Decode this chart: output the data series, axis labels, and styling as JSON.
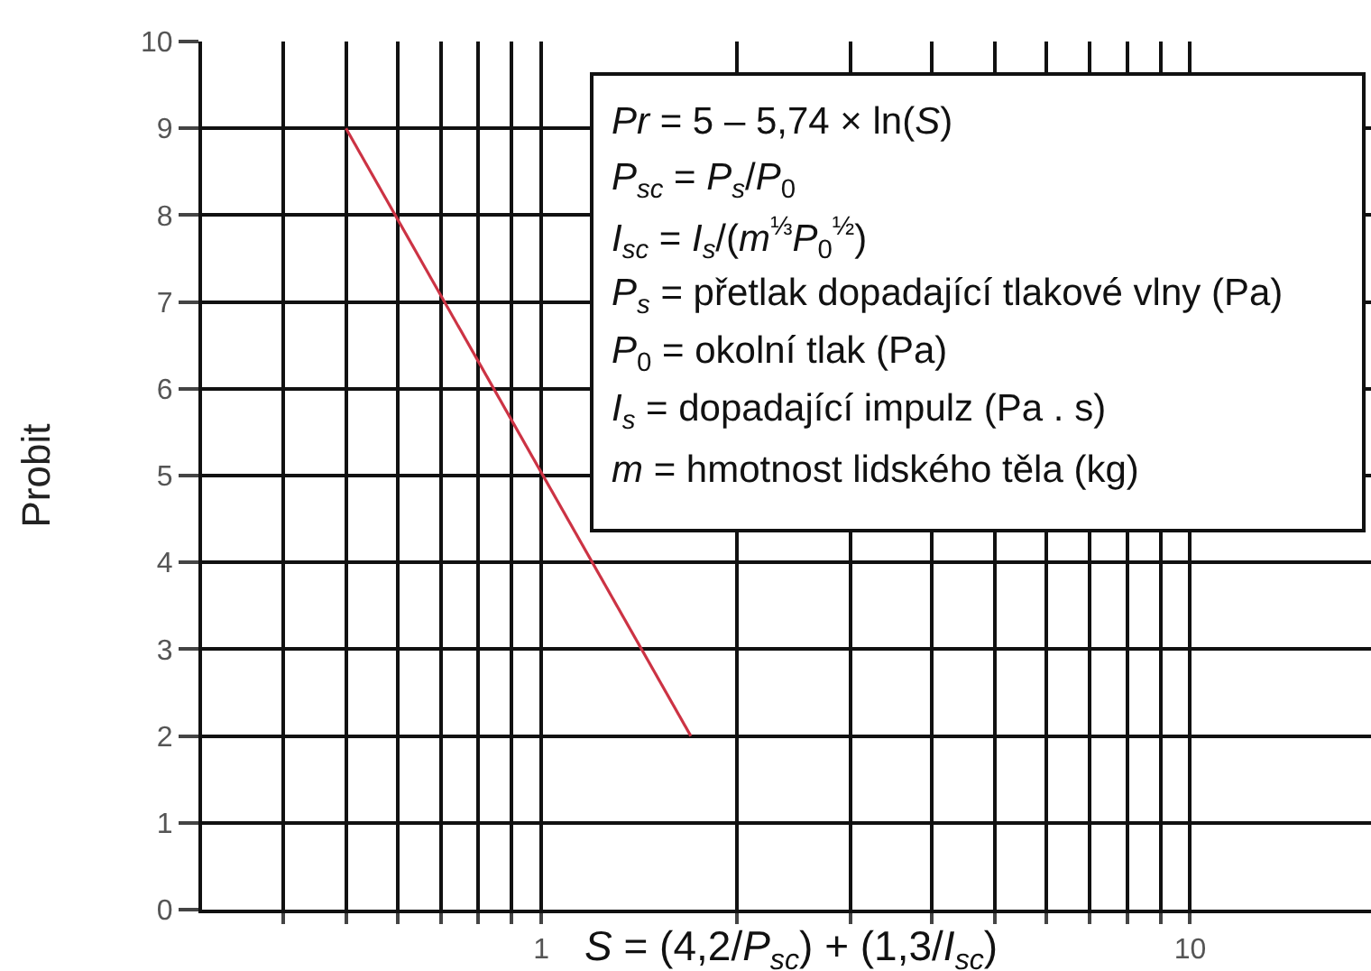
{
  "chart_data": {
    "type": "line",
    "xlabel": "S = (4,2/P$_{sc}$) + (1,3/I$_{sc}$)",
    "ylabel": "Probit",
    "log": "x",
    "grid": true,
    "x": [
      0.5,
      1.7
    ],
    "series": [
      {
        "color": "#cc3344",
        "values": [
          9,
          2
        ]
      }
    ],
    "xlim": [
      0.3,
      19
    ],
    "ylim": [
      0,
      10
    ],
    "xticks": [
      {
        "value": 0.4,
        "label": null
      },
      {
        "value": 0.5,
        "label": null
      },
      {
        "value": 0.6,
        "label": null
      },
      {
        "value": 0.7,
        "label": null
      },
      {
        "value": 0.8,
        "label": null
      },
      {
        "value": 0.9,
        "label": null
      },
      1,
      {
        "value": 2,
        "label": null
      },
      {
        "value": 3,
        "label": null
      },
      {
        "value": 4,
        "label": null
      },
      {
        "value": 5,
        "label": null
      },
      {
        "value": 6,
        "label": null
      },
      {
        "value": 7,
        "label": null
      },
      {
        "value": 8,
        "label": null
      },
      {
        "value": 9,
        "label": null
      },
      10
    ],
    "yticks": [
      0,
      1,
      2,
      3,
      4,
      5,
      6,
      7,
      8,
      9,
      10
    ],
    "annotations": [
      "Pr = 5 – 5,74 × ln(S)",
      "P$_{sc}$ = P$_{s}$/P$_{0}$",
      "I$_{sc}$ = I$_{s}$/(m$^{⅓}$P$_{0}$$^{½}$)",
      "P$_{s}$ = přetlak dopadající tlakové vlny (Pa)",
      "P$_{0}$ = okolní tlak (Pa)",
      "I$_{s}$ = dopadající impulz (Pa . s)",
      "m = hmotnost lidského těla (kg)"
    ]
  }
}
